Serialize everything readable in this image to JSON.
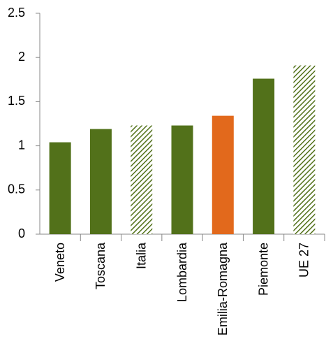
{
  "chart_data": {
    "type": "bar",
    "categories": [
      "Veneto",
      "Toscana",
      "Italia",
      "Lombardia",
      "Emilia-Romagna",
      "Piemonte",
      "UE 27"
    ],
    "values": [
      1.04,
      1.19,
      1.23,
      1.23,
      1.34,
      1.76,
      1.91
    ],
    "colors": [
      "#52711a",
      "#52711a",
      "#52711a",
      "#52711a",
      "#e2691c",
      "#52711a",
      "#52711a"
    ],
    "hatched": [
      false,
      false,
      true,
      false,
      false,
      false,
      true
    ],
    "ylim": [
      0,
      2.5
    ],
    "yticks": [
      0,
      0.5,
      1,
      1.5,
      2,
      2.5
    ],
    "grid": false
  }
}
